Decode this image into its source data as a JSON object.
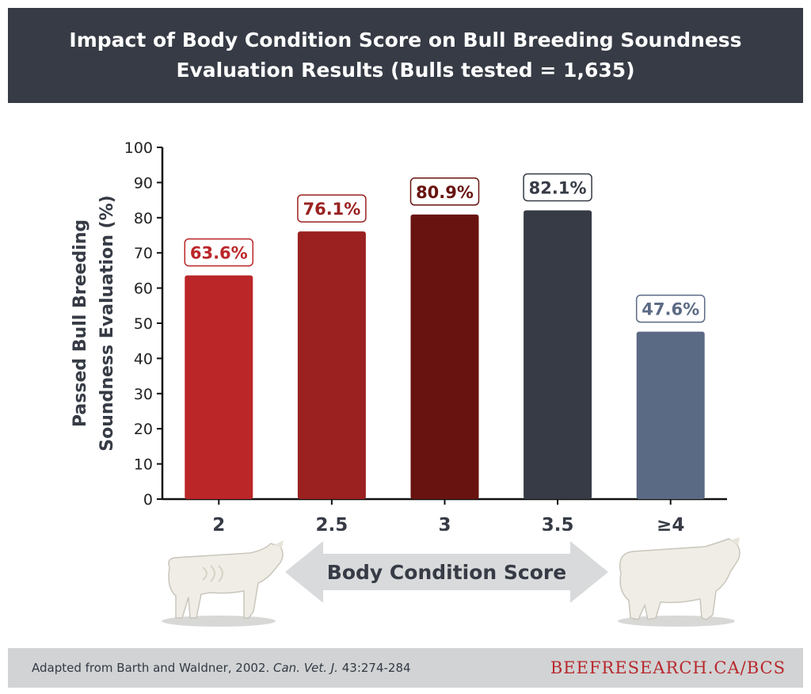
{
  "header": {
    "title_line1": "Impact of Body Condition Score on Bull Breeding Soundness",
    "title_line2": "Evaluation Results (Bulls tested = 1,635)"
  },
  "chart_data": {
    "type": "bar",
    "categories": [
      "2",
      "2.5",
      "3",
      "3.5",
      "≥4"
    ],
    "values": [
      63.6,
      76.1,
      80.9,
      82.1,
      47.6
    ],
    "data_labels": [
      "63.6%",
      "76.1%",
      "80.9%",
      "82.1%",
      "47.6%"
    ],
    "bar_colors": [
      "#bb2629",
      "#9a2120",
      "#68130f",
      "#363b45",
      "#5b6a84"
    ],
    "label_colors": [
      "#bb2629",
      "#9a2120",
      "#68130f",
      "#363b45",
      "#5b6a84"
    ],
    "ylabel_line1": "Passed Bull Breeding",
    "ylabel_line2": "Soundness Evaluation (%)",
    "xlabel": "Body Condition Score",
    "yticks": [
      0,
      10,
      20,
      30,
      40,
      50,
      60,
      70,
      80,
      90,
      100
    ],
    "ylim": [
      0,
      100
    ],
    "grid": false,
    "legend": "none"
  },
  "footer": {
    "citation_text": "Adapted from Barth and Waldner, 2002.",
    "citation_journal": "Can. Vet. J.",
    "citation_ref": "43:274-284",
    "brand": "BEEFRESEARCH.CA/BCS"
  },
  "colors": {
    "header_bg": "#363b45",
    "footer_bg": "#d1d3d4",
    "arrow": "#d9dadb",
    "brand": "#b8282d"
  },
  "icons": {
    "left_image": "thin-bull-icon",
    "right_image": "fat-bull-icon"
  }
}
